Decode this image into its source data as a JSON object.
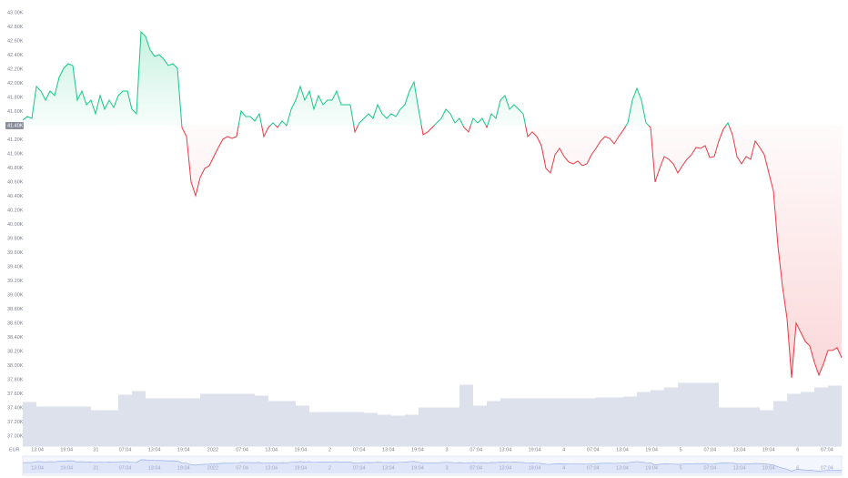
{
  "chart_data": {
    "type": "line",
    "currency": "EUR",
    "baseline": 41400,
    "color_up": "#16c784",
    "color_down": "#ea3943",
    "xlim": [
      0,
      10080
    ],
    "ylim": [
      36850,
      43100
    ],
    "x": [
      0,
      56,
      112,
      168,
      224,
      280,
      336,
      392,
      448,
      504,
      560,
      616,
      672,
      728,
      784,
      840,
      896,
      952,
      1008,
      1064,
      1120,
      1176,
      1232,
      1288,
      1344,
      1400,
      1456,
      1512,
      1568,
      1624,
      1680,
      1736,
      1792,
      1848,
      1904,
      1960,
      2016,
      2072,
      2128,
      2184,
      2240,
      2296,
      2352,
      2408,
      2464,
      2520,
      2576,
      2632,
      2688,
      2744,
      2800,
      2856,
      2912,
      2968,
      3024,
      3080,
      3136,
      3192,
      3248,
      3304,
      3360,
      3416,
      3472,
      3528,
      3584,
      3640,
      3696,
      3752,
      3808,
      3864,
      3920,
      3976,
      4032,
      4088,
      4144,
      4200,
      4256,
      4312,
      4368,
      4424,
      4480,
      4536,
      4592,
      4648,
      4704,
      4760,
      4816,
      4872,
      4928,
      4984,
      5040,
      5096,
      5152,
      5208,
      5264,
      5320,
      5376,
      5432,
      5488,
      5544,
      5600,
      5656,
      5712,
      5768,
      5824,
      5880,
      5936,
      5992,
      6048,
      6104,
      6160,
      6216,
      6272,
      6328,
      6384,
      6440,
      6496,
      6552,
      6608,
      6664,
      6720,
      6776,
      6832,
      6888,
      6944,
      7000,
      7056,
      7112,
      7168,
      7224,
      7280,
      7336,
      7392,
      7448,
      7504,
      7560,
      7616,
      7672,
      7728,
      7784,
      7840,
      7896,
      7952,
      8008,
      8064,
      8120,
      8176,
      8232,
      8288,
      8344,
      8400,
      8456,
      8512,
      8568,
      8624,
      8680,
      8736,
      8792,
      8848,
      8904,
      8960,
      9016,
      9072,
      9128,
      9184,
      9240,
      9296,
      9352,
      9408,
      9464,
      9520,
      9576,
      9632,
      9688,
      9744,
      9800,
      9856,
      9912,
      9968,
      10024,
      10080
    ],
    "values": [
      41477,
      41529,
      41503,
      41955,
      41890,
      41761,
      41890,
      41826,
      42084,
      42213,
      42277,
      42252,
      41761,
      41890,
      41697,
      41761,
      41568,
      41826,
      41632,
      41761,
      41658,
      41826,
      41890,
      41890,
      41632,
      41568,
      42729,
      42665,
      42471,
      42381,
      42406,
      42342,
      42252,
      42277,
      42213,
      41374,
      41245,
      40600,
      40406,
      40665,
      40793,
      40832,
      40961,
      41090,
      41207,
      41245,
      41219,
      41245,
      41607,
      41529,
      41529,
      41465,
      41568,
      41245,
      41374,
      41439,
      41374,
      41465,
      41400,
      41632,
      41761,
      41955,
      41761,
      41890,
      41632,
      41826,
      41697,
      41761,
      41761,
      41890,
      41697,
      41697,
      41697,
      41310,
      41439,
      41503,
      41568,
      41503,
      41697,
      41568,
      41503,
      41568,
      41529,
      41632,
      41697,
      41890,
      42019,
      41632,
      41271,
      41310,
      41374,
      41439,
      41503,
      41632,
      41568,
      41439,
      41503,
      41374,
      41310,
      41503,
      41439,
      41503,
      41374,
      41568,
      41503,
      41761,
      41826,
      41632,
      41697,
      41632,
      41568,
      41245,
      41310,
      41245,
      41116,
      40793,
      40729,
      40987,
      41077,
      40961,
      40884,
      40858,
      40897,
      40832,
      40858,
      40987,
      41077,
      41181,
      41245,
      41219,
      41142,
      41245,
      41336,
      41439,
      41761,
      41929,
      41761,
      41439,
      41374,
      40600,
      40793,
      40961,
      40922,
      40858,
      40729,
      40832,
      40922,
      40987,
      41090,
      41077,
      41116,
      40948,
      40961,
      41181,
      41349,
      41439,
      41271,
      40961,
      40858,
      40961,
      40922,
      41181,
      41090,
      40987,
      40729,
      40471,
      39697,
      39116,
      38665,
      37825,
      38600,
      38471,
      38342,
      38277,
      38045,
      37864,
      38019,
      38213,
      38213,
      38252,
      38110
    ],
    "yticks": [
      {
        "value": 37000,
        "label": "37.00K"
      },
      {
        "value": 37200,
        "label": "37.20K"
      },
      {
        "value": 37400,
        "label": "37.40K"
      },
      {
        "value": 37600,
        "label": "37.60K"
      },
      {
        "value": 37800,
        "label": "37.80K"
      },
      {
        "value": 38000,
        "label": "38.00K"
      },
      {
        "value": 38200,
        "label": "38.20K"
      },
      {
        "value": 38400,
        "label": "38.40K"
      },
      {
        "value": 38600,
        "label": "38.60K"
      },
      {
        "value": 38800,
        "label": "38.80K"
      },
      {
        "value": 39000,
        "label": "39.00K"
      },
      {
        "value": 39200,
        "label": "39.20K"
      },
      {
        "value": 39400,
        "label": "39.40K"
      },
      {
        "value": 39600,
        "label": "39.60K"
      },
      {
        "value": 39800,
        "label": "39.80K"
      },
      {
        "value": 40000,
        "label": "40.00K"
      },
      {
        "value": 40200,
        "label": "40.20K"
      },
      {
        "value": 40400,
        "label": "40.40K"
      },
      {
        "value": 40600,
        "label": "40.60K"
      },
      {
        "value": 40800,
        "label": "40.80K"
      },
      {
        "value": 41000,
        "label": "41.00K"
      },
      {
        "value": 41200,
        "label": "41.20K"
      },
      {
        "value": 41400,
        "label": "41.40K"
      },
      {
        "value": 41600,
        "label": "41.60K"
      },
      {
        "value": 41800,
        "label": "41.80K"
      },
      {
        "value": 42000,
        "label": "42.00K"
      },
      {
        "value": 42200,
        "label": "42.20K"
      },
      {
        "value": 42400,
        "label": "42.40K"
      },
      {
        "value": 42600,
        "label": "42.60K"
      },
      {
        "value": 42800,
        "label": "42.80K"
      },
      {
        "value": 43000,
        "label": "43.00K"
      }
    ],
    "xticks": [
      {
        "value": 180,
        "label": "13:04"
      },
      {
        "value": 540,
        "label": "19:04"
      },
      {
        "value": 900,
        "label": "31"
      },
      {
        "value": 1260,
        "label": "07:04"
      },
      {
        "value": 1620,
        "label": "13:04"
      },
      {
        "value": 1980,
        "label": "19:04"
      },
      {
        "value": 2340,
        "label": "2022"
      },
      {
        "value": 2700,
        "label": "07:04"
      },
      {
        "value": 3060,
        "label": "13:04"
      },
      {
        "value": 3420,
        "label": "19:04"
      },
      {
        "value": 3780,
        "label": "2"
      },
      {
        "value": 4140,
        "label": "07:04"
      },
      {
        "value": 4500,
        "label": "13:04"
      },
      {
        "value": 4860,
        "label": "19:04"
      },
      {
        "value": 5220,
        "label": "3"
      },
      {
        "value": 5580,
        "label": "07:04"
      },
      {
        "value": 5940,
        "label": "13:04"
      },
      {
        "value": 6300,
        "label": "19:04"
      },
      {
        "value": 6660,
        "label": "4"
      },
      {
        "value": 7020,
        "label": "07:04"
      },
      {
        "value": 7380,
        "label": "13:04"
      },
      {
        "value": 7740,
        "label": "19:04"
      },
      {
        "value": 8100,
        "label": "5"
      },
      {
        "value": 8460,
        "label": "07:04"
      },
      {
        "value": 8820,
        "label": "13:04"
      },
      {
        "value": 9180,
        "label": "19:04"
      },
      {
        "value": 9540,
        "label": "6"
      },
      {
        "value": 9900,
        "label": "07:04"
      }
    ],
    "volume": {
      "color": "#dde1ec",
      "lim": [
        0,
        110
      ],
      "x": [
        0,
        168,
        336,
        504,
        672,
        840,
        1008,
        1176,
        1344,
        1512,
        1680,
        1848,
        2016,
        2184,
        2352,
        2520,
        2688,
        2856,
        3024,
        3192,
        3360,
        3528,
        3696,
        3864,
        4032,
        4200,
        4368,
        4536,
        4704,
        4872,
        5040,
        5208,
        5376,
        5544,
        5712,
        5880,
        6048,
        6216,
        6384,
        6552,
        6720,
        6888,
        7056,
        7224,
        7392,
        7560,
        7728,
        7896,
        8064,
        8232,
        8400,
        8568,
        8736,
        8904,
        9072,
        9240,
        9408,
        9576,
        9744,
        9912
      ],
      "values": [
        49,
        44,
        44,
        44,
        44,
        40,
        40,
        57,
        61,
        53,
        53,
        53,
        53,
        58,
        58,
        58,
        58,
        56,
        50,
        50,
        45,
        38,
        38,
        38,
        38,
        37,
        35,
        34,
        35,
        43,
        43,
        43,
        68,
        45,
        50,
        53,
        53,
        53,
        53,
        53,
        53,
        53,
        54,
        54,
        55,
        60,
        62,
        65,
        70,
        70,
        70,
        43,
        43,
        43,
        40,
        50,
        58,
        60,
        65,
        67
      ]
    }
  }
}
